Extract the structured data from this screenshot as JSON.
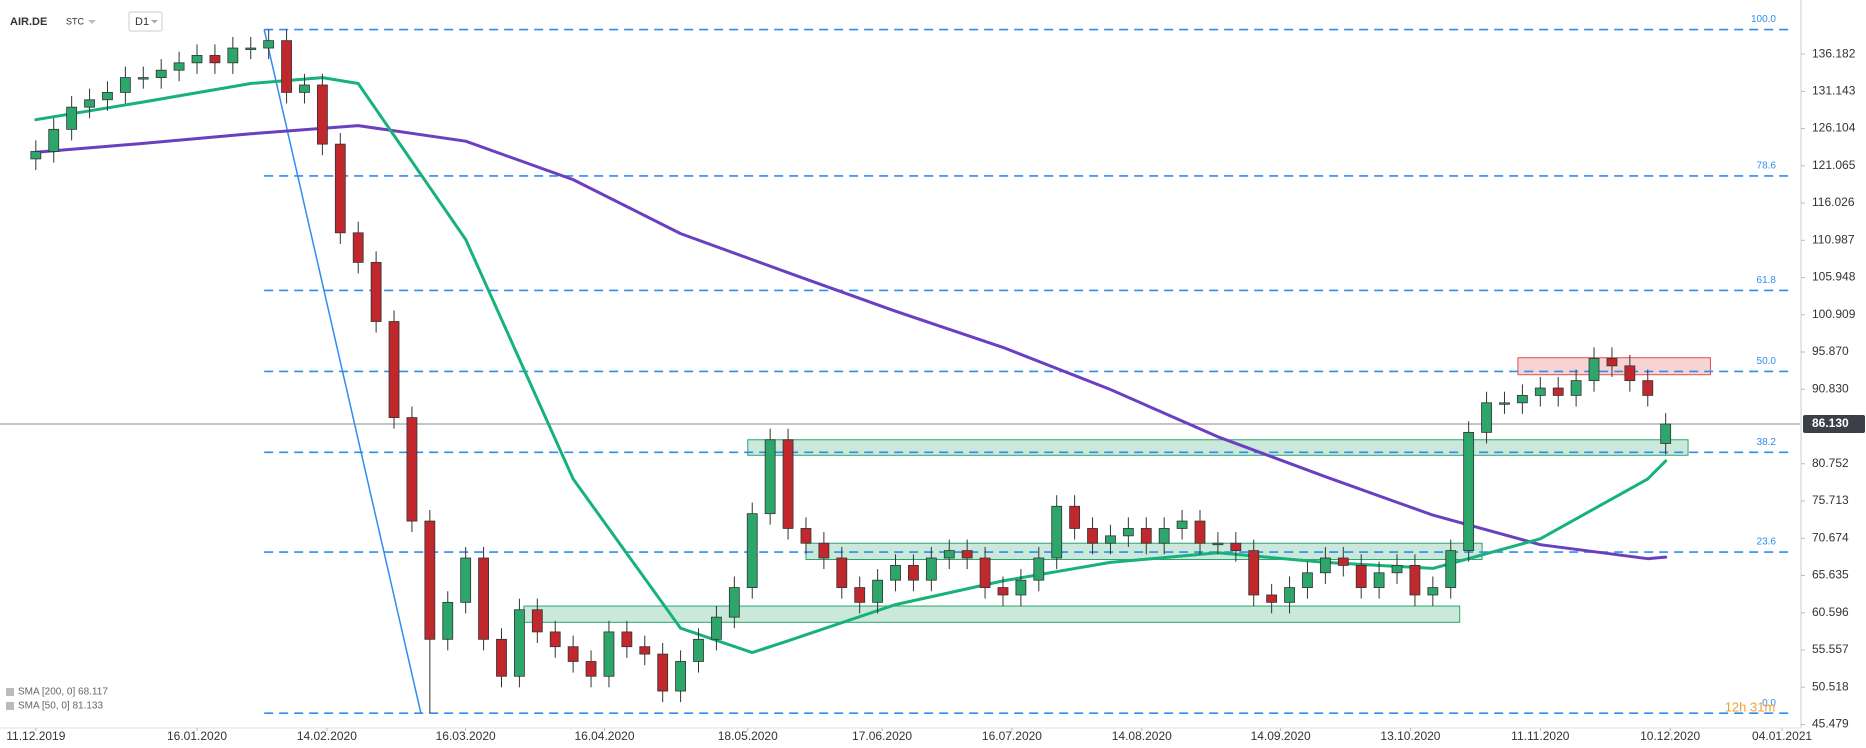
{
  "chart_data": {
    "type": "candlestick",
    "symbol": "AIR.DE",
    "source": "STC",
    "timeframe": "D1",
    "countdown": "12h 31m",
    "up_color": "#2ca66b",
    "down_color": "#c0282d",
    "x": [
      "2019-12-11",
      "2019-12-15",
      "2019-12-19",
      "2019-12-23",
      "2019-12-27",
      "2019-12-31",
      "2020-01-04",
      "2020-01-08",
      "2020-01-12",
      "2020-01-16",
      "2020-01-20",
      "2020-01-24",
      "2020-01-28",
      "2020-02-01",
      "2020-02-05",
      "2020-02-09",
      "2020-02-13",
      "2020-02-17",
      "2020-02-21",
      "2020-02-25",
      "2020-02-29",
      "2020-03-04",
      "2020-03-08",
      "2020-03-12",
      "2020-03-16",
      "2020-03-20",
      "2020-03-24",
      "2020-03-28",
      "2020-04-01",
      "2020-04-05",
      "2020-04-09",
      "2020-04-13",
      "2020-04-17",
      "2020-04-21",
      "2020-04-25",
      "2020-04-29",
      "2020-05-03",
      "2020-05-07",
      "2020-05-11",
      "2020-05-15",
      "2020-05-19",
      "2020-05-23",
      "2020-05-27",
      "2020-05-31",
      "2020-06-04",
      "2020-06-08",
      "2020-06-12",
      "2020-06-16",
      "2020-06-20",
      "2020-06-24",
      "2020-06-28",
      "2020-07-02",
      "2020-07-06",
      "2020-07-10",
      "2020-07-14",
      "2020-07-18",
      "2020-07-22",
      "2020-07-26",
      "2020-07-30",
      "2020-08-03",
      "2020-08-07",
      "2020-08-11",
      "2020-08-15",
      "2020-08-19",
      "2020-08-23",
      "2020-08-27",
      "2020-08-31",
      "2020-09-04",
      "2020-09-08",
      "2020-09-12",
      "2020-09-16",
      "2020-09-20",
      "2020-09-24",
      "2020-09-28",
      "2020-10-02",
      "2020-10-06",
      "2020-10-10",
      "2020-10-14",
      "2020-10-18",
      "2020-10-22",
      "2020-10-26",
      "2020-10-30",
      "2020-11-03",
      "2020-11-07",
      "2020-11-11",
      "2020-11-15",
      "2020-11-19",
      "2020-11-23",
      "2020-11-27",
      "2020-12-01",
      "2020-12-05",
      "2020-12-09"
    ],
    "open": [
      122,
      123,
      126,
      129,
      130,
      131,
      133,
      133,
      134,
      135,
      136,
      135,
      137,
      137,
      138,
      131,
      132,
      124,
      112,
      108,
      100,
      87,
      73,
      57,
      62,
      68,
      57,
      52,
      61,
      58,
      56,
      54,
      52,
      58,
      56,
      55,
      50,
      54,
      57,
      60,
      64,
      74,
      84,
      72,
      70,
      68,
      64,
      62,
      65,
      67,
      65,
      68,
      69,
      68,
      64,
      63,
      65,
      68,
      75,
      72,
      70,
      71,
      72,
      70,
      72,
      73,
      70,
      70,
      69,
      63,
      62,
      64,
      66,
      68,
      67,
      64,
      66,
      67,
      63,
      64,
      69,
      85,
      89,
      89,
      90,
      91,
      90,
      92,
      95,
      94,
      92,
      83.5
    ],
    "high": [
      124.5,
      127.5,
      130.5,
      131.5,
      132.5,
      134.5,
      134.5,
      135.5,
      136.5,
      137.5,
      137.5,
      138.5,
      138.5,
      139.5,
      139.5,
      133.5,
      133.5,
      125.5,
      113.5,
      109.5,
      101.5,
      88.5,
      74.5,
      63.5,
      69.5,
      69.5,
      58.5,
      62.5,
      62.5,
      59.5,
      57.5,
      55.5,
      59.5,
      59.5,
      57.5,
      56.5,
      55.5,
      58.5,
      61.5,
      65.5,
      75.5,
      85.5,
      85.5,
      73.5,
      71.5,
      69.5,
      65.5,
      66.5,
      68.5,
      68.5,
      69.5,
      70.5,
      70.5,
      69.5,
      65.5,
      66.5,
      69.5,
      76.5,
      76.5,
      73.5,
      72.5,
      73.5,
      73.5,
      73.5,
      74.5,
      74.5,
      71.5,
      71.5,
      70.5,
      64.5,
      65.5,
      67.5,
      69.5,
      69.5,
      68.5,
      67.5,
      68.5,
      68.5,
      65.5,
      70.5,
      86.5,
      90.5,
      90.5,
      91.5,
      92.5,
      92.5,
      93.5,
      96.5,
      96.5,
      95.5,
      93.5,
      87.6
    ],
    "low": [
      120.5,
      121.5,
      124.5,
      127.5,
      128.5,
      129.5,
      131.5,
      131.5,
      132.5,
      133.5,
      133.5,
      133.5,
      135.5,
      135.5,
      129.5,
      129.5,
      122.5,
      110.5,
      106.5,
      98.5,
      85.5,
      71.5,
      47,
      55.5,
      60.5,
      55.5,
      50.5,
      50.5,
      56.5,
      54.5,
      52.5,
      50.5,
      50.5,
      54.5,
      53.5,
      48.5,
      48.5,
      52.5,
      55.5,
      58.5,
      62.5,
      72.5,
      70.5,
      68.5,
      66.5,
      62.5,
      60.5,
      60.5,
      63.5,
      63.5,
      63.5,
      66.5,
      66.5,
      62.5,
      61.5,
      61.5,
      63.5,
      66.5,
      70.5,
      68.5,
      68.5,
      69.5,
      68.5,
      68.5,
      70.5,
      68.5,
      68.5,
      67.5,
      61.5,
      60.5,
      60.5,
      62.5,
      64.5,
      65.5,
      62.5,
      62.5,
      64.5,
      61.5,
      61.5,
      62.5,
      67.5,
      83.5,
      87.5,
      87.5,
      88.5,
      88.5,
      88.5,
      90.5,
      92.5,
      90.5,
      88.5,
      82
    ],
    "close": [
      123,
      126,
      129,
      130,
      131,
      133,
      133,
      134,
      135,
      136,
      135,
      137,
      137,
      138,
      131,
      132,
      124,
      112,
      108,
      100,
      87,
      73,
      57,
      62,
      68,
      57,
      52,
      61,
      58,
      56,
      54,
      52,
      58,
      56,
      55,
      50,
      54,
      57,
      60,
      64,
      74,
      84,
      72,
      70,
      68,
      64,
      62,
      65,
      67,
      65,
      68,
      69,
      68,
      64,
      63,
      65,
      68,
      75,
      72,
      70,
      71,
      72,
      70,
      72,
      73,
      70,
      70,
      69,
      63,
      62,
      64,
      66,
      68,
      67,
      64,
      66,
      67,
      63,
      64,
      69,
      85,
      89,
      89,
      90,
      91,
      90,
      92,
      95,
      94,
      92,
      90,
      86.13
    ],
    "series": [
      {
        "name": "SMA [200, 0] 68.117",
        "color": "#6a3fc0",
        "x": [
          "2019-12-11",
          "2020-01-04",
          "2020-01-28",
          "2020-02-21",
          "2020-03-16",
          "2020-04-09",
          "2020-05-03",
          "2020-05-27",
          "2020-06-20",
          "2020-07-14",
          "2020-08-07",
          "2020-08-31",
          "2020-09-24",
          "2020-10-18",
          "2020-11-11",
          "2020-12-05",
          "2020-12-09"
        ],
        "values": [
          122.9,
          124.1,
          125.4,
          126.5,
          124.4,
          119.2,
          111.9,
          106.6,
          101.4,
          96.5,
          90.8,
          84.4,
          79.0,
          73.8,
          69.8,
          67.9,
          68.117
        ]
      },
      {
        "name": "SMA [50, 0] 81.133",
        "color": "#17b27a",
        "x": [
          "2019-12-11",
          "2020-01-04",
          "2020-01-28",
          "2020-02-13",
          "2020-02-21",
          "2020-03-16",
          "2020-04-09",
          "2020-05-03",
          "2020-05-19",
          "2020-05-27",
          "2020-06-20",
          "2020-07-14",
          "2020-08-07",
          "2020-08-31",
          "2020-09-24",
          "2020-10-18",
          "2020-11-11",
          "2020-12-05",
          "2020-12-09"
        ],
        "values": [
          127.3,
          129.7,
          132.2,
          133,
          132.2,
          111.1,
          78.7,
          58.5,
          55.2,
          56.8,
          61.7,
          64.9,
          67.4,
          68.7,
          67.4,
          66.6,
          70.6,
          78.7,
          81.133
        ]
      }
    ],
    "fib": {
      "color": "#2f8cf0",
      "x": [
        "2020-01-31",
        "2020-03-06"
      ],
      "y": [
        139.5,
        47
      ],
      "levels": [
        {
          "ratio": "100.0",
          "price": 139.5
        },
        {
          "ratio": "78.6",
          "price": 119.7
        },
        {
          "ratio": "61.8",
          "price": 104.2
        },
        {
          "ratio": "50.0",
          "price": 93.25
        },
        {
          "ratio": "38.2",
          "price": 82.3
        },
        {
          "ratio": "23.6",
          "price": 68.8
        },
        {
          "ratio": "0.0",
          "price": 47
        }
      ]
    },
    "zones": [
      {
        "x": [
          "2020-05-18",
          "2020-12-14"
        ],
        "y": [
          81.9,
          84.0
        ],
        "color": "#2aa66e"
      },
      {
        "x": [
          "2020-05-31",
          "2020-10-29"
        ],
        "y": [
          67.8,
          70.0
        ],
        "color": "#2aa66e"
      },
      {
        "x": [
          "2020-03-29",
          "2020-10-24"
        ],
        "y": [
          59.3,
          61.5
        ],
        "color": "#2aa66e"
      },
      {
        "x": [
          "2020-11-06",
          "2020-12-19"
        ],
        "y": [
          92.8,
          95.1
        ],
        "color": "#e05050"
      }
    ],
    "last_price": {
      "value": 86.13,
      "label": "86.130"
    },
    "xlim": [
      "2019-12-03",
      "2021-01-08"
    ],
    "xticks": [
      {
        "value": "2019-12-11",
        "label": "11.12.2019"
      },
      {
        "value": "2020-01-16",
        "label": "16.01.2020"
      },
      {
        "value": "2020-02-14",
        "label": "14.02.2020"
      },
      {
        "value": "2020-03-16",
        "label": "16.03.2020"
      },
      {
        "value": "2020-04-16",
        "label": "16.04.2020"
      },
      {
        "value": "2020-05-18",
        "label": "18.05.2020"
      },
      {
        "value": "2020-06-17",
        "label": "17.06.2020"
      },
      {
        "value": "2020-07-16",
        "label": "16.07.2020"
      },
      {
        "value": "2020-08-14",
        "label": "14.08.2020"
      },
      {
        "value": "2020-09-14",
        "label": "14.09.2020"
      },
      {
        "value": "2020-10-13",
        "label": "13.10.2020"
      },
      {
        "value": "2020-11-11",
        "label": "11.11.2020"
      },
      {
        "value": "2020-12-10",
        "label": "10.12.2020"
      },
      {
        "value": "2021-01-04",
        "label": "04.01.2021"
      }
    ],
    "ylim": [
      45,
      143.5
    ],
    "yticks": [
      136.182,
      131.143,
      126.104,
      121.065,
      116.026,
      110.987,
      105.948,
      100.909,
      {
        "value": 95.87,
        "label": "95.870"
      },
      {
        "value": 90.83,
        "label": "90.830"
      },
      80.752,
      75.713,
      70.674,
      65.635,
      60.596,
      55.557,
      50.518,
      45.479
    ]
  }
}
